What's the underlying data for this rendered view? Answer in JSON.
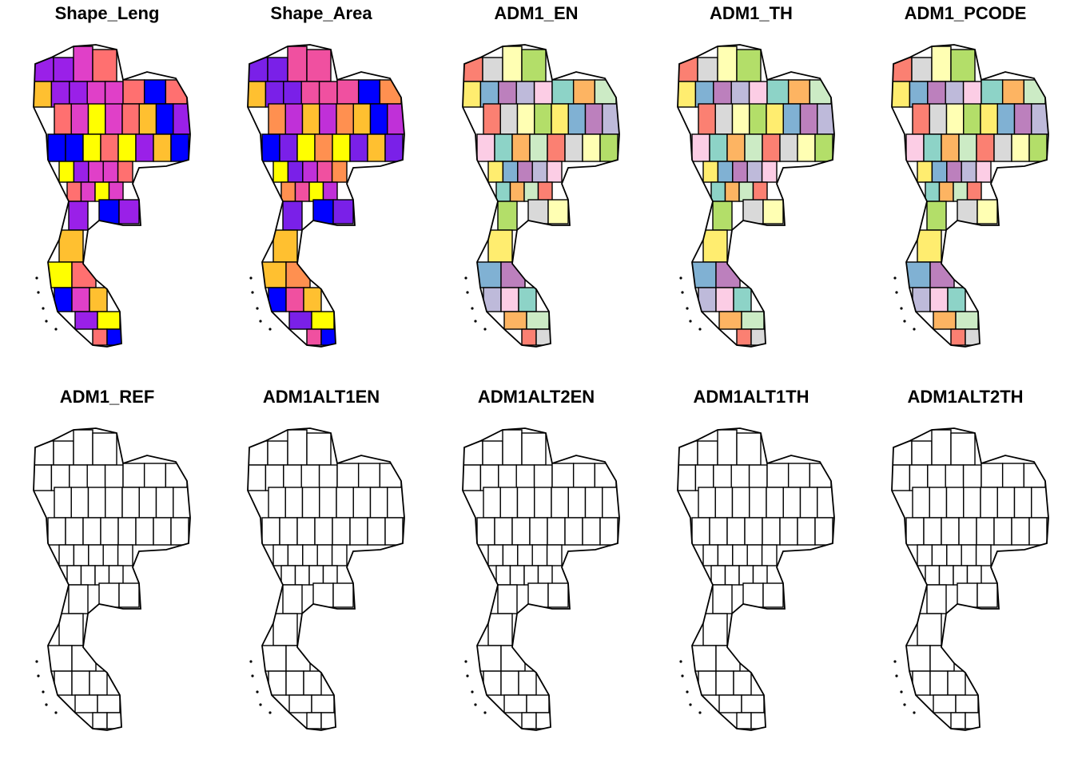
{
  "figure": {
    "panels": [
      {
        "title": "Shape_Leng",
        "fill": "numeric",
        "palette": [
          "#0000FF",
          "#9A20E8",
          "#E040C8",
          "#FF7070",
          "#FFC030",
          "#FFFF00"
        ]
      },
      {
        "title": "Shape_Area",
        "fill": "numeric",
        "palette": [
          "#0000FF",
          "#7A20E8",
          "#C030D8",
          "#F050A0",
          "#FF9050",
          "#FFC030",
          "#FFFF00"
        ]
      },
      {
        "title": "ADM1_EN",
        "fill": "categorical",
        "palette": [
          "#8DD3C7",
          "#FFFFB3",
          "#BEBADA",
          "#FB8072",
          "#80B1D3",
          "#FDB462",
          "#B3DE69",
          "#FCCDE5",
          "#D9D9D9",
          "#BC80BD",
          "#CCEBC5",
          "#FFED6F"
        ]
      },
      {
        "title": "ADM1_TH",
        "fill": "categorical",
        "palette": [
          "#8DD3C7",
          "#FFFFB3",
          "#BEBADA",
          "#FB8072",
          "#80B1D3",
          "#FDB462",
          "#B3DE69",
          "#FCCDE5",
          "#D9D9D9",
          "#BC80BD",
          "#CCEBC5",
          "#FFED6F"
        ]
      },
      {
        "title": "ADM1_PCODE",
        "fill": "categorical",
        "palette": [
          "#8DD3C7",
          "#FFFFB3",
          "#BEBADA",
          "#FB8072",
          "#80B1D3",
          "#FDB462",
          "#B3DE69",
          "#FCCDE5",
          "#D9D9D9",
          "#BC80BD",
          "#CCEBC5",
          "#FFED6F"
        ]
      },
      {
        "title": "ADM1_REF",
        "fill": "none",
        "palette": []
      },
      {
        "title": "ADM1ALT1EN",
        "fill": "none",
        "palette": []
      },
      {
        "title": "ADM1ALT2EN",
        "fill": "none",
        "palette": []
      },
      {
        "title": "ADM1ALT1TH",
        "fill": "none",
        "palette": []
      },
      {
        "title": "ADM1ALT2TH",
        "fill": "none",
        "palette": []
      }
    ],
    "border_color": "#000000",
    "background": "#FFFFFF"
  }
}
